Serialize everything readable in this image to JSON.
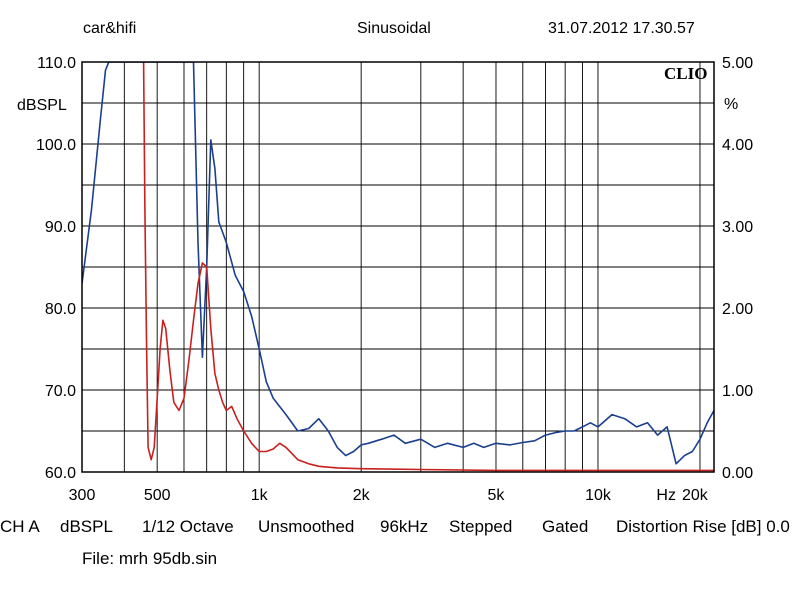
{
  "header": {
    "left": "car&hifi",
    "center": "Sinusoidal",
    "right": "31.07.2012 17.30.57"
  },
  "brand": "CLIO",
  "footer": {
    "channel": "CH A",
    "units": "dBSPL",
    "resolution": "1/12 Octave",
    "smoothing": "Unsmoothed",
    "rate": "96kHz",
    "mode": "Stepped",
    "gating": "Gated",
    "distortion": "Distortion Rise [dB] 0.0",
    "file": "File: mrh 95db.sin"
  },
  "chart_data": {
    "type": "line",
    "x_scale": "log",
    "xlim": [
      300,
      22000
    ],
    "ylim": [
      60,
      110
    ],
    "y2lim": [
      0,
      5
    ],
    "ylabel": "dBSPL",
    "y2label": "%",
    "xlabel": "Hz",
    "grid": true,
    "y_ticks": [
      "110.0",
      "100.0",
      "90.0",
      "80.0",
      "70.0",
      "60.0"
    ],
    "y2_ticks": [
      "5.00",
      "4.00",
      "3.00",
      "2.00",
      "1.00",
      "0.00"
    ],
    "x_tick_labels": [
      {
        "label": "300",
        "value": 300
      },
      {
        "label": "500",
        "value": 500
      },
      {
        "label": "1k",
        "value": 1000
      },
      {
        "label": "2k",
        "value": 2000
      },
      {
        "label": "5k",
        "value": 5000
      },
      {
        "label": "10k",
        "value": 10000
      },
      {
        "label": "20k",
        "value": 20000
      }
    ],
    "x_unit_label": "Hz",
    "x_grid": [
      300,
      400,
      500,
      600,
      700,
      800,
      900,
      1000,
      2000,
      3000,
      4000,
      5000,
      6000,
      7000,
      8000,
      9000,
      10000,
      20000
    ],
    "series": [
      {
        "color": "#1a3f8f",
        "axis": "left",
        "x": [
          300,
          320,
          340,
          352,
          360,
          500,
          560,
          600,
          640,
          660,
          680,
          700,
          720,
          740,
          760,
          800,
          850,
          900,
          950,
          1000,
          1050,
          1100,
          1200,
          1300,
          1400,
          1500,
          1600,
          1700,
          1800,
          1900,
          2000,
          2100,
          2300,
          2500,
          2700,
          3000,
          3300,
          3600,
          4000,
          4300,
          4600,
          5000,
          5500,
          6000,
          6500,
          7000,
          7500,
          8000,
          8500,
          9000,
          9500,
          10000,
          11000,
          12000,
          13000,
          14000,
          15000,
          16000,
          17000,
          18000,
          19000,
          20000,
          21000,
          22000
        ],
        "y": [
          83,
          92,
          103,
          109,
          110,
          110,
          110,
          110,
          110,
          88,
          74,
          85,
          100.5,
          97,
          90.5,
          88,
          84,
          82,
          79,
          75,
          71,
          69,
          67,
          65,
          65.3,
          66.5,
          65,
          63,
          62,
          62.5,
          63.3,
          63.5,
          64,
          64.5,
          63.5,
          64,
          63,
          63.5,
          63,
          63.5,
          63,
          63.5,
          63.3,
          63.6,
          63.8,
          64.5,
          64.8,
          65,
          65,
          65.5,
          66,
          65.5,
          67,
          66.5,
          65.5,
          66,
          64.5,
          65.5,
          61,
          62,
          62.5,
          64,
          66,
          67.5
        ]
      },
      {
        "color": "#c8201e",
        "axis": "right",
        "x": [
          456,
          460,
          465,
          470,
          480,
          490,
          500,
          510,
          520,
          530,
          545,
          560,
          580,
          600,
          620,
          640,
          660,
          680,
          700,
          720,
          740,
          760,
          780,
          800,
          830,
          860,
          900,
          950,
          1000,
          1050,
          1100,
          1150,
          1200,
          1300,
          1400,
          1500,
          1700,
          2000,
          3000,
          5000,
          10000,
          20000,
          22000
        ],
        "y": [
          5,
          3.2,
          1.6,
          0.3,
          0.15,
          0.3,
          0.9,
          1.5,
          1.85,
          1.75,
          1.25,
          0.85,
          0.75,
          0.9,
          1.35,
          1.85,
          2.3,
          2.55,
          2.5,
          1.75,
          1.2,
          1.0,
          0.85,
          0.75,
          0.8,
          0.65,
          0.5,
          0.35,
          0.25,
          0.25,
          0.28,
          0.35,
          0.3,
          0.15,
          0.1,
          0.07,
          0.05,
          0.04,
          0.03,
          0.02,
          0.02,
          0.02,
          0.02
        ]
      }
    ]
  }
}
